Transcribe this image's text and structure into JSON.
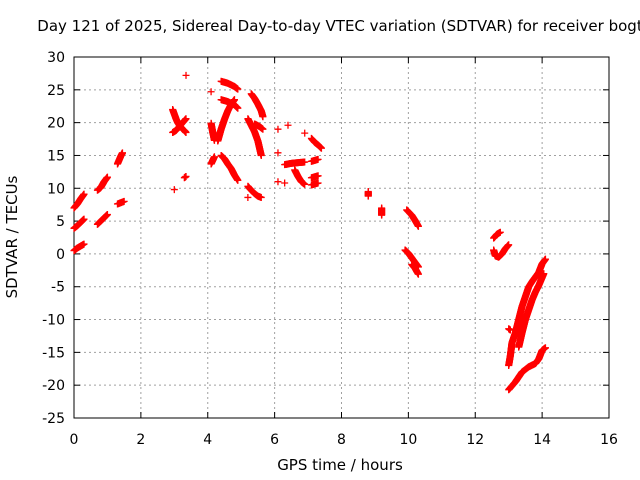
{
  "chart_data": {
    "type": "scatter",
    "title": "Day 121 of 2025, Sidereal Day-to-day VTEC variation (SDTVAR) for receiver bogt",
    "xlabel": "GPS time / hours",
    "ylabel": "SDTVAR / TECUs",
    "xlim": [
      0,
      16
    ],
    "ylim": [
      -25,
      30
    ],
    "xticks": [
      0,
      2,
      4,
      6,
      8,
      10,
      12,
      14,
      16
    ],
    "yticks": [
      -25,
      -20,
      -15,
      -10,
      -5,
      0,
      5,
      10,
      15,
      20,
      25,
      30
    ],
    "grid": true,
    "marker": "+",
    "color": "#ff0000",
    "segments": [
      [
        [
          0.0,
          7.0
        ],
        [
          0.1,
          7.6
        ],
        [
          0.2,
          8.4
        ],
        [
          0.3,
          9.1
        ]
      ],
      [
        [
          0.0,
          3.9
        ],
        [
          0.1,
          4.3
        ],
        [
          0.2,
          4.8
        ],
        [
          0.3,
          5.3
        ]
      ],
      [
        [
          0.0,
          0.5
        ],
        [
          0.1,
          0.9
        ],
        [
          0.2,
          1.2
        ],
        [
          0.3,
          1.5
        ]
      ],
      [
        [
          0.7,
          9.7
        ],
        [
          0.8,
          10.1
        ],
        [
          0.9,
          11.0
        ],
        [
          1.0,
          11.7
        ]
      ],
      [
        [
          0.7,
          4.5
        ],
        [
          0.8,
          5.0
        ],
        [
          0.9,
          5.5
        ],
        [
          1.0,
          6.0
        ]
      ],
      [
        [
          1.3,
          13.7
        ],
        [
          1.35,
          14.3
        ],
        [
          1.4,
          14.9
        ],
        [
          1.45,
          15.4
        ]
      ],
      [
        [
          1.3,
          7.6
        ],
        [
          1.4,
          7.8
        ],
        [
          1.5,
          8.0
        ]
      ],
      [
        [
          2.95,
          22.0
        ],
        [
          3.0,
          21.3
        ],
        [
          3.05,
          20.6
        ],
        [
          3.1,
          20.0
        ],
        [
          3.15,
          19.6
        ],
        [
          3.2,
          19.3
        ],
        [
          3.25,
          19.0
        ],
        [
          3.3,
          18.8
        ],
        [
          3.35,
          18.5
        ]
      ],
      [
        [
          2.95,
          18.5
        ],
        [
          3.05,
          18.8
        ],
        [
          3.15,
          19.4
        ],
        [
          3.25,
          20.0
        ],
        [
          3.35,
          20.6
        ]
      ],
      [
        [
          3.0,
          9.8
        ]
      ],
      [
        [
          3.3,
          11.6
        ],
        [
          3.35,
          11.8
        ]
      ],
      [
        [
          3.35,
          27.2
        ]
      ],
      [
        [
          4.1,
          24.7
        ]
      ],
      [
        [
          4.1,
          19.9
        ],
        [
          4.15,
          18.5
        ],
        [
          4.2,
          17.3
        ]
      ],
      [
        [
          4.1,
          13.7
        ],
        [
          4.2,
          14.8
        ]
      ],
      [
        [
          4.3,
          17.2
        ],
        [
          4.4,
          19.0
        ],
        [
          4.5,
          20.5
        ],
        [
          4.6,
          21.8
        ],
        [
          4.7,
          22.8
        ],
        [
          4.8,
          23.5
        ]
      ],
      [
        [
          4.4,
          26.3
        ],
        [
          4.6,
          26.0
        ],
        [
          4.8,
          25.5
        ],
        [
          4.9,
          25.1
        ]
      ],
      [
        [
          4.4,
          23.5
        ],
        [
          4.6,
          23.2
        ],
        [
          4.8,
          22.7
        ],
        [
          4.9,
          22.2
        ]
      ],
      [
        [
          4.4,
          15.0
        ],
        [
          4.5,
          14.5
        ],
        [
          4.6,
          13.7
        ],
        [
          4.7,
          13.0
        ],
        [
          4.8,
          12.0
        ],
        [
          4.9,
          11.2
        ]
      ],
      [
        [
          5.2,
          20.6
        ],
        [
          5.3,
          19.6
        ],
        [
          5.4,
          18.6
        ],
        [
          5.5,
          17.2
        ],
        [
          5.6,
          15.0
        ]
      ],
      [
        [
          5.2,
          10.3
        ],
        [
          5.3,
          9.7
        ],
        [
          5.4,
          9.2
        ],
        [
          5.5,
          8.8
        ],
        [
          5.6,
          8.6
        ]
      ],
      [
        [
          5.2,
          8.6
        ]
      ],
      [
        [
          5.3,
          24.4
        ],
        [
          5.4,
          23.7
        ],
        [
          5.5,
          22.8
        ],
        [
          5.6,
          21.8
        ],
        [
          5.65,
          20.9
        ]
      ],
      [
        [
          5.4,
          19.8
        ],
        [
          5.55,
          19.4
        ],
        [
          5.65,
          19.0
        ]
      ],
      [
        [
          6.1,
          19.0
        ]
      ],
      [
        [
          6.1,
          15.4
        ]
      ],
      [
        [
          6.1,
          11.0
        ]
      ],
      [
        [
          6.3,
          13.6
        ],
        [
          6.5,
          13.8
        ],
        [
          6.7,
          13.9
        ],
        [
          6.9,
          14.0
        ]
      ],
      [
        [
          6.3,
          10.8
        ]
      ],
      [
        [
          6.4,
          19.6
        ]
      ],
      [
        [
          6.6,
          12.8
        ],
        [
          6.7,
          11.8
        ],
        [
          6.8,
          11.0
        ],
        [
          6.9,
          10.6
        ]
      ],
      [
        [
          6.9,
          18.4
        ]
      ],
      [
        [
          7.1,
          14.1
        ],
        [
          7.3,
          14.4
        ]
      ],
      [
        [
          7.1,
          17.6
        ],
        [
          7.2,
          17.0
        ],
        [
          7.3,
          16.6
        ],
        [
          7.4,
          16.1
        ]
      ],
      [
        [
          7.1,
          11.6
        ],
        [
          7.3,
          11.9
        ]
      ],
      [
        [
          7.1,
          10.5
        ],
        [
          7.3,
          10.8
        ]
      ],
      [
        [
          8.8,
          9.5
        ],
        [
          8.8,
          8.8
        ]
      ],
      [
        [
          9.2,
          7.0
        ],
        [
          9.2,
          5.9
        ]
      ],
      [
        [
          9.95,
          6.7
        ],
        [
          10.1,
          5.9
        ],
        [
          10.2,
          5.1
        ],
        [
          10.3,
          4.2
        ]
      ],
      [
        [
          9.9,
          0.6
        ],
        [
          10.0,
          0.1
        ],
        [
          10.1,
          -0.6
        ],
        [
          10.2,
          -1.3
        ],
        [
          10.3,
          -2.0
        ]
      ],
      [
        [
          10.1,
          -1.6
        ],
        [
          10.2,
          -2.2
        ],
        [
          10.3,
          -3.1
        ]
      ],
      [
        [
          12.55,
          2.4
        ],
        [
          12.65,
          3.0
        ],
        [
          12.75,
          3.3
        ]
      ],
      [
        [
          12.55,
          0.6
        ],
        [
          12.6,
          -0.3
        ],
        [
          12.7,
          -0.5
        ],
        [
          12.8,
          0.0
        ],
        [
          12.9,
          0.8
        ],
        [
          13.0,
          1.4
        ]
      ],
      [
        [
          13.0,
          -11.4
        ],
        [
          13.05,
          -11.6
        ]
      ],
      [
        [
          13.0,
          -17.0
        ],
        [
          13.05,
          -15.5
        ],
        [
          13.1,
          -13.5
        ],
        [
          13.2,
          -12.0
        ],
        [
          13.3,
          -10.0
        ],
        [
          13.4,
          -8.0
        ],
        [
          13.5,
          -6.5
        ],
        [
          13.6,
          -5.0
        ],
        [
          13.7,
          -4.2
        ],
        [
          13.8,
          -3.5
        ],
        [
          13.9,
          -2.8
        ],
        [
          14.0,
          -1.5
        ],
        [
          14.1,
          -0.8
        ]
      ],
      [
        [
          13.3,
          -14.2
        ],
        [
          13.4,
          -12.0
        ],
        [
          13.5,
          -10.0
        ],
        [
          13.6,
          -8.5
        ],
        [
          13.7,
          -7.0
        ],
        [
          13.8,
          -5.8
        ],
        [
          13.9,
          -4.8
        ],
        [
          14.0,
          -3.6
        ],
        [
          14.05,
          -3.0
        ]
      ],
      [
        [
          13.0,
          -20.7
        ],
        [
          13.2,
          -19.5
        ],
        [
          13.4,
          -18.0
        ],
        [
          13.6,
          -17.2
        ],
        [
          13.8,
          -16.7
        ],
        [
          13.9,
          -16.0
        ],
        [
          14.0,
          -14.7
        ],
        [
          14.1,
          -14.3
        ]
      ]
    ]
  }
}
